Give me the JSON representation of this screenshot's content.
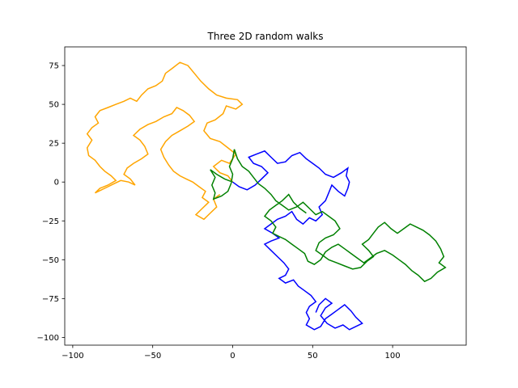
{
  "chart_data": {
    "type": "line",
    "title": "Three 2D random walks",
    "xlabel": "",
    "ylabel": "",
    "xlim": [
      -105,
      146
    ],
    "ylim": [
      -105,
      87
    ],
    "grid": false,
    "legend": "none",
    "xticks": [
      -100,
      -50,
      0,
      50,
      100
    ],
    "xtick_labels": [
      "−100",
      "−50",
      "0",
      "50",
      "100"
    ],
    "yticks": [
      -100,
      -75,
      -50,
      -25,
      0,
      25,
      50,
      75
    ],
    "ytick_labels": [
      "−100",
      "−75",
      "−50",
      "−25",
      "0",
      "25",
      "50",
      "75"
    ],
    "series": [
      {
        "color": "#ffa500",
        "points": [
          [
            0,
            0
          ],
          [
            -3,
            4
          ],
          [
            -8,
            6
          ],
          [
            -12,
            10
          ],
          [
            -7,
            14
          ],
          [
            -2,
            12
          ],
          [
            2,
            18
          ],
          [
            -3,
            22
          ],
          [
            -8,
            26
          ],
          [
            -14,
            28
          ],
          [
            -18,
            33
          ],
          [
            -16,
            38
          ],
          [
            -11,
            40
          ],
          [
            -6,
            44
          ],
          [
            -4,
            49
          ],
          [
            2,
            47
          ],
          [
            6,
            50
          ],
          [
            3,
            53
          ],
          [
            -4,
            54
          ],
          [
            -10,
            56
          ],
          [
            -15,
            60
          ],
          [
            -20,
            65
          ],
          [
            -24,
            70
          ],
          [
            -28,
            75
          ],
          [
            -33,
            77
          ],
          [
            -38,
            73
          ],
          [
            -42,
            70
          ],
          [
            -44,
            65
          ],
          [
            -48,
            62
          ],
          [
            -53,
            60
          ],
          [
            -57,
            56
          ],
          [
            -60,
            52
          ],
          [
            -64,
            54
          ],
          [
            -68,
            52
          ],
          [
            -73,
            50
          ],
          [
            -78,
            48
          ],
          [
            -83,
            46
          ],
          [
            -86,
            42
          ],
          [
            -84,
            38
          ],
          [
            -88,
            35
          ],
          [
            -91,
            31
          ],
          [
            -88,
            27
          ],
          [
            -91,
            22
          ],
          [
            -90,
            17
          ],
          [
            -86,
            14
          ],
          [
            -83,
            10
          ],
          [
            -80,
            7
          ],
          [
            -76,
            4
          ],
          [
            -73,
            1
          ],
          [
            -78,
            -2
          ],
          [
            -83,
            -4
          ],
          [
            -86,
            -7
          ],
          [
            -82,
            -5
          ],
          [
            -78,
            -3
          ],
          [
            -74,
            -1
          ],
          [
            -70,
            1
          ],
          [
            -65,
            0
          ],
          [
            -61,
            -2
          ],
          [
            -64,
            2
          ],
          [
            -68,
            5
          ],
          [
            -66,
            9
          ],
          [
            -62,
            12
          ],
          [
            -57,
            15
          ],
          [
            -53,
            18
          ],
          [
            -55,
            23
          ],
          [
            -58,
            27
          ],
          [
            -62,
            30
          ],
          [
            -58,
            34
          ],
          [
            -53,
            37
          ],
          [
            -48,
            39
          ],
          [
            -43,
            42
          ],
          [
            -38,
            44
          ],
          [
            -35,
            48
          ],
          [
            -31,
            46
          ],
          [
            -27,
            43
          ],
          [
            -24,
            39
          ],
          [
            -28,
            36
          ],
          [
            -33,
            33
          ],
          [
            -38,
            30
          ],
          [
            -42,
            26
          ],
          [
            -45,
            21
          ],
          [
            -43,
            16
          ],
          [
            -40,
            11
          ],
          [
            -37,
            7
          ],
          [
            -33,
            4
          ],
          [
            -29,
            2
          ],
          [
            -25,
            0
          ],
          [
            -21,
            -3
          ],
          [
            -17,
            -6
          ],
          [
            -19,
            -10
          ],
          [
            -15,
            -13
          ],
          [
            -19,
            -17
          ],
          [
            -23,
            -21
          ],
          [
            -18,
            -24
          ],
          [
            -14,
            -20
          ],
          [
            -10,
            -16
          ],
          [
            -12,
            -11
          ],
          [
            -8,
            -8
          ]
        ]
      },
      {
        "color": "#0000ff",
        "points": [
          [
            0,
            0
          ],
          [
            4,
            -3
          ],
          [
            9,
            -5
          ],
          [
            14,
            -2
          ],
          [
            18,
            2
          ],
          [
            22,
            6
          ],
          [
            18,
            10
          ],
          [
            13,
            12
          ],
          [
            10,
            16
          ],
          [
            15,
            18
          ],
          [
            20,
            20
          ],
          [
            24,
            16
          ],
          [
            28,
            12
          ],
          [
            33,
            13
          ],
          [
            37,
            17
          ],
          [
            42,
            19
          ],
          [
            46,
            15
          ],
          [
            50,
            12
          ],
          [
            54,
            9
          ],
          [
            58,
            5
          ],
          [
            63,
            3
          ],
          [
            68,
            6
          ],
          [
            72,
            9
          ],
          [
            71,
            4
          ],
          [
            73,
            0
          ],
          [
            72,
            -4
          ],
          [
            70,
            -9
          ],
          [
            66,
            -6
          ],
          [
            62,
            -2
          ],
          [
            60,
            -7
          ],
          [
            58,
            -12
          ],
          [
            54,
            -16
          ],
          [
            56,
            -21
          ],
          [
            52,
            -25
          ],
          [
            48,
            -23
          ],
          [
            44,
            -27
          ],
          [
            40,
            -24
          ],
          [
            37,
            -19
          ],
          [
            33,
            -22
          ],
          [
            28,
            -24
          ],
          [
            24,
            -27
          ],
          [
            20,
            -30
          ],
          [
            25,
            -33
          ],
          [
            29,
            -36
          ],
          [
            24,
            -38
          ],
          [
            20,
            -40
          ],
          [
            24,
            -44
          ],
          [
            28,
            -48
          ],
          [
            32,
            -52
          ],
          [
            35,
            -56
          ],
          [
            33,
            -60
          ],
          [
            29,
            -62
          ],
          [
            33,
            -65
          ],
          [
            38,
            -63
          ],
          [
            41,
            -67
          ],
          [
            45,
            -70
          ],
          [
            49,
            -73
          ],
          [
            52,
            -77
          ],
          [
            48,
            -80
          ],
          [
            46,
            -84
          ],
          [
            48,
            -88
          ],
          [
            46,
            -92
          ],
          [
            51,
            -95
          ],
          [
            55,
            -93
          ],
          [
            58,
            -88
          ],
          [
            62,
            -85
          ],
          [
            66,
            -82
          ],
          [
            70,
            -79
          ],
          [
            74,
            -83
          ],
          [
            77,
            -87
          ],
          [
            81,
            -91
          ],
          [
            77,
            -93
          ],
          [
            73,
            -95
          ],
          [
            69,
            -92
          ],
          [
            64,
            -94
          ],
          [
            59,
            -91
          ],
          [
            55,
            -86
          ],
          [
            58,
            -81
          ],
          [
            62,
            -78
          ],
          [
            58,
            -75
          ],
          [
            54,
            -79
          ],
          [
            52,
            -84
          ]
        ]
      },
      {
        "color": "#008000",
        "points": [
          [
            0,
            0
          ],
          [
            -5,
            2
          ],
          [
            -10,
            5
          ],
          [
            -14,
            8
          ],
          [
            -11,
            3
          ],
          [
            -13,
            -2
          ],
          [
            -11,
            -7
          ],
          [
            -12,
            -11
          ],
          [
            -7,
            -9
          ],
          [
            -3,
            -6
          ],
          [
            -1,
            -1
          ],
          [
            0,
            5
          ],
          [
            -2,
            10
          ],
          [
            0,
            15
          ],
          [
            1,
            21
          ],
          [
            3,
            15
          ],
          [
            6,
            10
          ],
          [
            10,
            7
          ],
          [
            13,
            3
          ],
          [
            16,
            -1
          ],
          [
            20,
            -4
          ],
          [
            24,
            -8
          ],
          [
            27,
            -12
          ],
          [
            31,
            -15
          ],
          [
            35,
            -18
          ],
          [
            40,
            -16
          ],
          [
            44,
            -13
          ],
          [
            48,
            -17
          ],
          [
            52,
            -21
          ],
          [
            56,
            -19
          ],
          [
            60,
            -22
          ],
          [
            64,
            -25
          ],
          [
            67,
            -30
          ],
          [
            63,
            -34
          ],
          [
            58,
            -36
          ],
          [
            54,
            -39
          ],
          [
            52,
            -44
          ],
          [
            56,
            -47
          ],
          [
            60,
            -50
          ],
          [
            65,
            -52
          ],
          [
            70,
            -54
          ],
          [
            75,
            -56
          ],
          [
            80,
            -55
          ],
          [
            84,
            -51
          ],
          [
            88,
            -48
          ],
          [
            85,
            -44
          ],
          [
            81,
            -40
          ],
          [
            85,
            -37
          ],
          [
            88,
            -33
          ],
          [
            91,
            -29
          ],
          [
            95,
            -26
          ],
          [
            99,
            -30
          ],
          [
            103,
            -33
          ],
          [
            107,
            -30
          ],
          [
            111,
            -27
          ],
          [
            115,
            -29
          ],
          [
            119,
            -31
          ],
          [
            123,
            -34
          ],
          [
            127,
            -38
          ],
          [
            130,
            -43
          ],
          [
            132,
            -48
          ],
          [
            129,
            -52
          ],
          [
            133,
            -55
          ],
          [
            128,
            -58
          ],
          [
            124,
            -62
          ],
          [
            120,
            -64
          ],
          [
            116,
            -60
          ],
          [
            112,
            -57
          ],
          [
            108,
            -53
          ],
          [
            104,
            -50
          ],
          [
            100,
            -47
          ],
          [
            95,
            -44
          ],
          [
            90,
            -46
          ],
          [
            86,
            -49
          ],
          [
            82,
            -52
          ],
          [
            78,
            -49
          ],
          [
            74,
            -46
          ],
          [
            70,
            -43
          ],
          [
            66,
            -40
          ],
          [
            62,
            -42
          ],
          [
            58,
            -45
          ],
          [
            55,
            -50
          ],
          [
            51,
            -53
          ],
          [
            47,
            -51
          ],
          [
            45,
            -46
          ],
          [
            41,
            -43
          ],
          [
            37,
            -40
          ],
          [
            33,
            -37
          ],
          [
            29,
            -35
          ],
          [
            25,
            -33
          ],
          [
            27,
            -29
          ],
          [
            24,
            -25
          ],
          [
            20,
            -22
          ],
          [
            23,
            -18
          ],
          [
            27,
            -15
          ],
          [
            31,
            -12
          ],
          [
            35,
            -8
          ],
          [
            38,
            -13
          ],
          [
            42,
            -17
          ],
          [
            46,
            -20
          ]
        ]
      }
    ]
  }
}
